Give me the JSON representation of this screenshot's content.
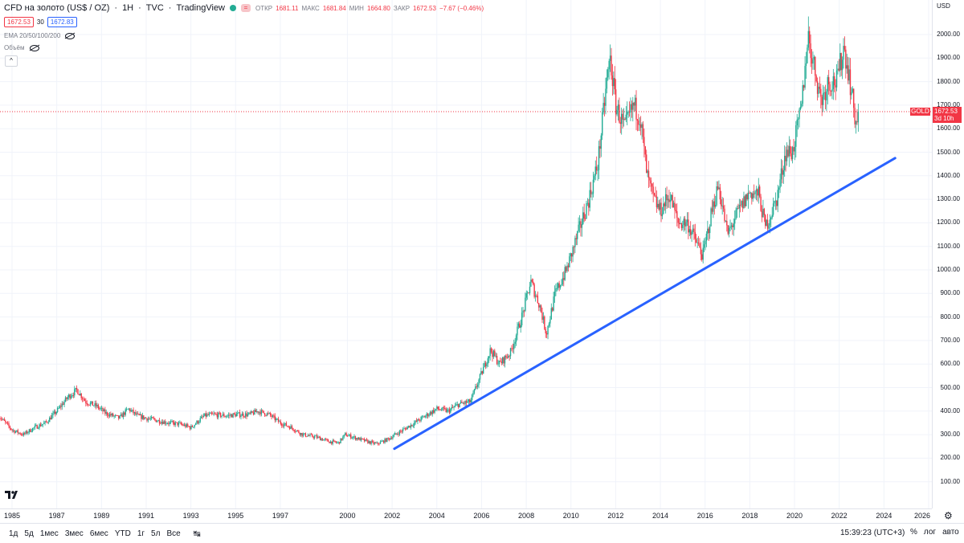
{
  "header": {
    "symbol": "CFD на золото (US$ / OZ)",
    "interval": "1Н",
    "exchange": "TVC",
    "source": "TradingView",
    "open_label": "ОТКР",
    "open_value": "1681.11",
    "high_label": "МАКС",
    "high_value": "1681.84",
    "low_label": "МИН",
    "low_value": "1664.80",
    "close_label": "ЗАКР",
    "close_value": "1672.53",
    "change": "−7.67 (−0.46%)",
    "status_color": "#22ab94",
    "tag": "="
  },
  "quotes": {
    "sell": "1672.53",
    "spread": "30",
    "buy": "1672.83"
  },
  "indicators": {
    "ema": "EMA 20/50/100/200",
    "volume": "Объём"
  },
  "price_scale": {
    "currency": "USD",
    "ticks": [
      "2000.00",
      "1900.00",
      "1800.00",
      "1700.00",
      "1600.00",
      "1500.00",
      "1400.00",
      "1300.00",
      "1200.00",
      "1100.00",
      "1000.00",
      "900.00",
      "800.00",
      "700.00",
      "600.00",
      "500.00",
      "400.00",
      "300.00",
      "200.00",
      "100.00"
    ],
    "symbol_tag": "GOLD",
    "last_price": "1672.53",
    "countdown": "3d 10h"
  },
  "time_axis": {
    "ticks": [
      "1985",
      "1987",
      "1989",
      "1991",
      "1993",
      "1995",
      "1997",
      "2000",
      "2002",
      "2004",
      "2006",
      "2008",
      "2010",
      "2012",
      "2014",
      "2016",
      "2018",
      "2020",
      "2022",
      "2024",
      "2026"
    ]
  },
  "bottom_bar": {
    "ranges": [
      "1д",
      "5д",
      "1мес",
      "3мес",
      "6мес",
      "YTD",
      "1г",
      "5л",
      "Все"
    ],
    "time": "15:39:23 (UTC+3)",
    "percent": "%",
    "log": "лог",
    "auto": "авто"
  },
  "chart_data": {
    "type": "candlestick",
    "symbol": "GOLD",
    "currency": "USD",
    "ylim": [
      0,
      2100
    ],
    "xlim": [
      1984.4,
      2026.4
    ],
    "up_color": "#22ab94",
    "down_color": "#f23645",
    "trendline_color": "#2962ff",
    "last_price": 1672.53,
    "price_path": [
      [
        1984.4,
        380
      ],
      [
        1985.0,
        320
      ],
      [
        1985.5,
        300
      ],
      [
        1986.0,
        330
      ],
      [
        1986.5,
        350
      ],
      [
        1987.0,
        400
      ],
      [
        1987.5,
        460
      ],
      [
        1987.9,
        490
      ],
      [
        1988.3,
        440
      ],
      [
        1988.8,
        420
      ],
      [
        1989.2,
        390
      ],
      [
        1989.8,
        370
      ],
      [
        1990.2,
        410
      ],
      [
        1990.6,
        380
      ],
      [
        1991.0,
        370
      ],
      [
        1991.5,
        360
      ],
      [
        1992.0,
        350
      ],
      [
        1992.5,
        345
      ],
      [
        1993.0,
        330
      ],
      [
        1993.6,
        380
      ],
      [
        1994.0,
        385
      ],
      [
        1994.6,
        380
      ],
      [
        1995.0,
        385
      ],
      [
        1995.6,
        385
      ],
      [
        1996.0,
        400
      ],
      [
        1996.5,
        385
      ],
      [
        1997.0,
        350
      ],
      [
        1997.5,
        330
      ],
      [
        1998.0,
        300
      ],
      [
        1998.6,
        290
      ],
      [
        1999.2,
        270
      ],
      [
        1999.6,
        265
      ],
      [
        1999.9,
        300
      ],
      [
        2000.4,
        285
      ],
      [
        2000.9,
        270
      ],
      [
        2001.3,
        260
      ],
      [
        2001.8,
        280
      ],
      [
        2002.4,
        315
      ],
      [
        2003.0,
        350
      ],
      [
        2003.5,
        380
      ],
      [
        2004.0,
        410
      ],
      [
        2004.5,
        400
      ],
      [
        2005.0,
        430
      ],
      [
        2005.5,
        440
      ],
      [
        2006.0,
        560
      ],
      [
        2006.4,
        660
      ],
      [
        2006.8,
        600
      ],
      [
        2007.3,
        650
      ],
      [
        2007.8,
        800
      ],
      [
        2008.2,
        950
      ],
      [
        2008.6,
        850
      ],
      [
        2008.9,
        730
      ],
      [
        2009.3,
        900
      ],
      [
        2009.8,
        1000
      ],
      [
        2010.3,
        1150
      ],
      [
        2010.8,
        1300
      ],
      [
        2011.2,
        1450
      ],
      [
        2011.6,
        1800
      ],
      [
        2011.75,
        1900
      ],
      [
        2012.0,
        1700
      ],
      [
        2012.4,
        1600
      ],
      [
        2012.8,
        1700
      ],
      [
        2013.1,
        1650
      ],
      [
        2013.4,
        1400
      ],
      [
        2013.7,
        1300
      ],
      [
        2014.0,
        1250
      ],
      [
        2014.4,
        1320
      ],
      [
        2014.8,
        1200
      ],
      [
        2015.2,
        1200
      ],
      [
        2015.6,
        1120
      ],
      [
        2015.9,
        1060
      ],
      [
        2016.3,
        1250
      ],
      [
        2016.6,
        1360
      ],
      [
        2017.0,
        1150
      ],
      [
        2017.5,
        1250
      ],
      [
        2018.0,
        1330
      ],
      [
        2018.4,
        1320
      ],
      [
        2018.7,
        1180
      ],
      [
        2019.2,
        1300
      ],
      [
        2019.6,
        1500
      ],
      [
        2019.9,
        1500
      ],
      [
        2020.3,
        1680
      ],
      [
        2020.6,
        2000
      ],
      [
        2020.8,
        1900
      ],
      [
        2021.2,
        1720
      ],
      [
        2021.5,
        1800
      ],
      [
        2021.9,
        1800
      ],
      [
        2022.2,
        1950
      ],
      [
        2022.4,
        1850
      ],
      [
        2022.6,
        1720
      ],
      [
        2022.75,
        1620
      ],
      [
        2022.85,
        1672.53
      ]
    ],
    "trendline": [
      [
        2002.1,
        240
      ],
      [
        2024.5,
        1475
      ]
    ],
    "last_price_line": 1672.53
  }
}
